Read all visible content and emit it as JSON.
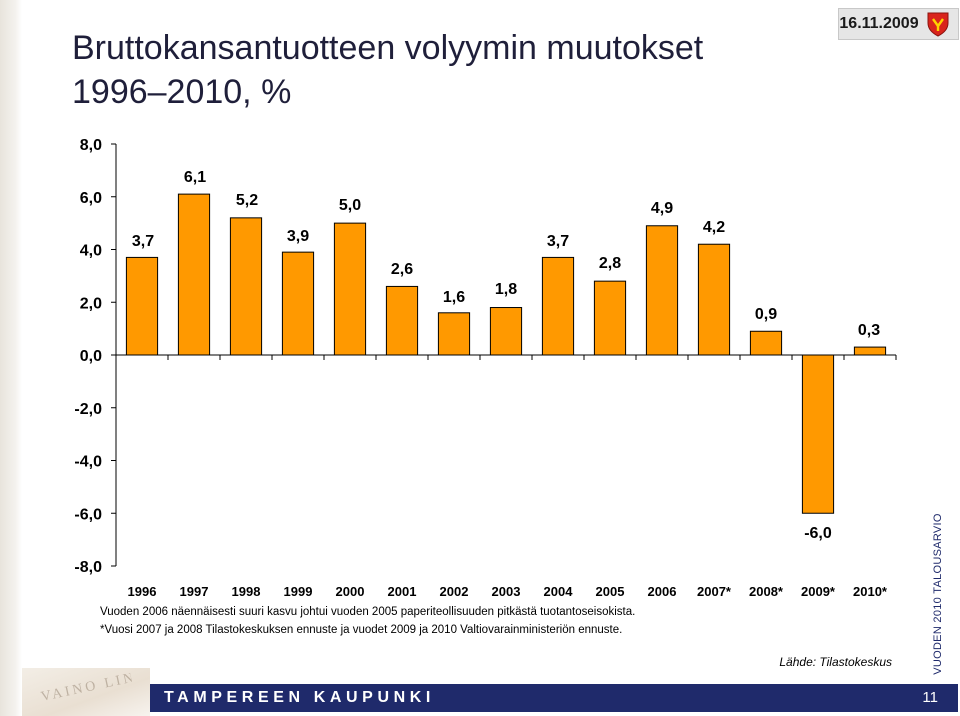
{
  "header": {
    "title_line1": "Bruttokansantuotteen volyymin muutokset",
    "title_line2": "1996–2010, %",
    "date": "16.11.2009"
  },
  "colors": {
    "bar_fill": "#FF9900",
    "bar_stroke": "#000000",
    "footer_bg": "#1F2A6B",
    "crest_red": "#D9241C"
  },
  "chart_data": {
    "type": "bar",
    "categories": [
      "1996",
      "1997",
      "1998",
      "1999",
      "2000",
      "2001",
      "2002",
      "2003",
      "2004",
      "2005",
      "2006",
      "2007*",
      "2008*",
      "2009*",
      "2010*"
    ],
    "values": [
      3.7,
      6.1,
      5.2,
      3.9,
      5.0,
      2.6,
      1.6,
      1.8,
      3.7,
      2.8,
      4.9,
      4.2,
      0.9,
      -6.0,
      0.3
    ],
    "value_labels": [
      "3,7",
      "6,1",
      "5,2",
      "3,9",
      "5,0",
      "2,6",
      "1,6",
      "1,8",
      "3,7",
      "2,8",
      "4,9",
      "4,2",
      "0,9",
      "-6,0",
      "0,3"
    ],
    "title": "",
    "xlabel": "",
    "ylabel": "",
    "ylim": [
      -8,
      8
    ],
    "yticks": [
      8,
      6,
      4,
      2,
      0,
      -2,
      -4,
      -6,
      -8
    ],
    "ytick_labels": [
      "8,0",
      "6,0",
      "4,0",
      "2,0",
      "0,0",
      "-2,0",
      "-4,0",
      "-6,0",
      "-8,0"
    ],
    "grid": false,
    "legend": "none"
  },
  "notes": {
    "line1": "Vuoden 2006 näennäisesti suuri kasvu johtui vuoden 2005 paperiteollisuuden pitkästä tuotantoseisokista.",
    "line2": "*Vuosi 2007 ja 2008 Tilastokeskuksen ennuste  ja vuodet 2009 ja 2010 Valtiovarainministeriön ennuste."
  },
  "source": "Lähde: Tilastokeskus",
  "side_label": "VUODEN 2010 TALOUSARVIO",
  "footer": {
    "name": "TAMPEREEN KAUPUNKI",
    "page": "11"
  },
  "stamp_text": "VAINO LIN"
}
